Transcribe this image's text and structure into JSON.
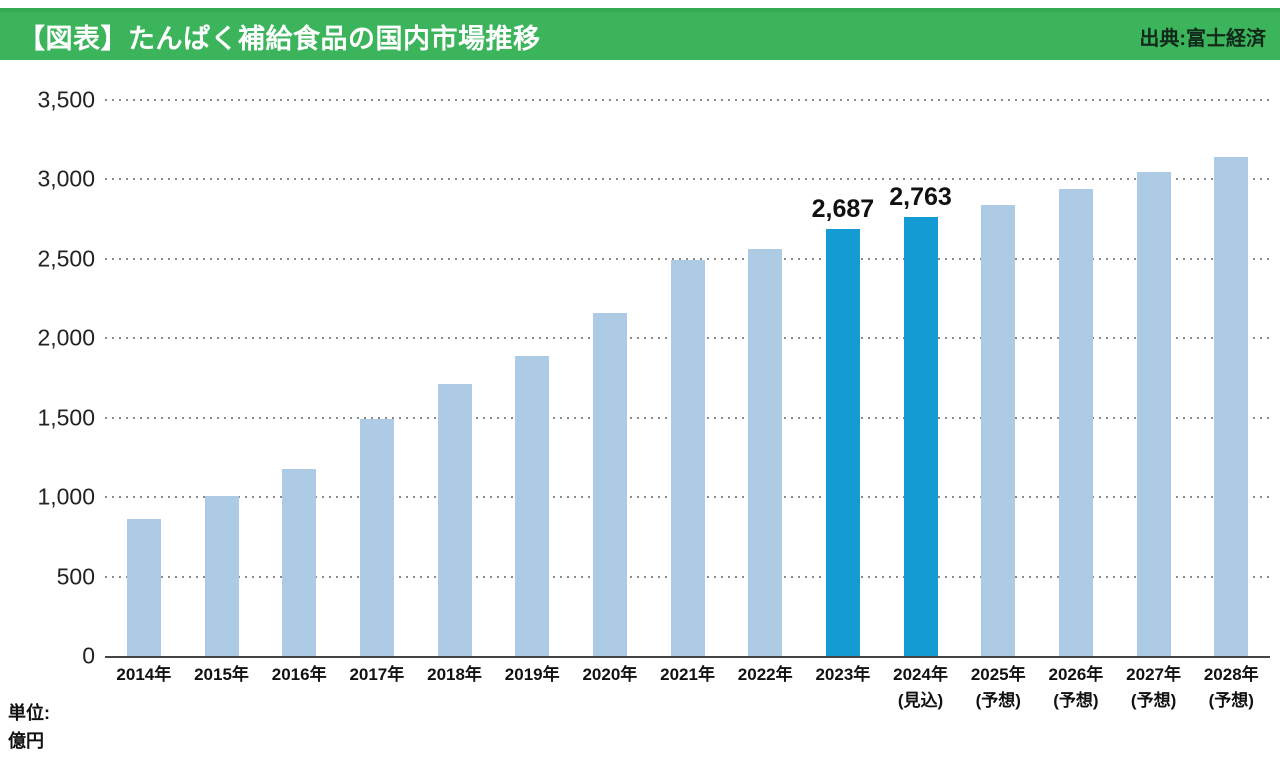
{
  "header": {
    "title": "【図表】たんぱく補給食品の国内市場推移",
    "source": "出典:富士経済",
    "band_color": "#3cb45c"
  },
  "unit_note": {
    "line1": "単位:",
    "line2": "億円"
  },
  "chart_data": {
    "type": "bar",
    "title": "たんぱく補給食品の国内市場推移",
    "xlabel": "",
    "ylabel": "億円",
    "categories": [
      "2014年",
      "2015年",
      "2016年",
      "2017年",
      "2018年",
      "2019年",
      "2020年",
      "2021年",
      "2022年",
      "2023年",
      "2024年",
      "2025年",
      "2026年",
      "2027年",
      "2028年"
    ],
    "category_suffixes": [
      "",
      "",
      "",
      "",
      "",
      "",
      "",
      "",
      "",
      "",
      "(見込)",
      "(予想)",
      "(予想)",
      "(予想)",
      "(予想)"
    ],
    "values": [
      860,
      1010,
      1180,
      1490,
      1710,
      1890,
      2160,
      2490,
      2560,
      2687,
      2763,
      2840,
      2940,
      3050,
      3140
    ],
    "data_labels": [
      "",
      "",
      "",
      "",
      "",
      "",
      "",
      "",
      "",
      "2,687",
      "2,763",
      "",
      "",
      "",
      ""
    ],
    "highlighted_indices": [
      9,
      10
    ],
    "bar_color": "#aecbe5",
    "highlight_color": "#149bd3",
    "ylim": [
      0,
      3500
    ],
    "yticks": [
      0,
      500,
      1000,
      1500,
      2000,
      2500,
      3000,
      3500
    ],
    "ytick_labels": [
      "0",
      "500",
      "1,000",
      "1,500",
      "2,000",
      "2,500",
      "3,000",
      "3,500"
    ],
    "grid": "dotted-horizontal",
    "legend": "none"
  }
}
